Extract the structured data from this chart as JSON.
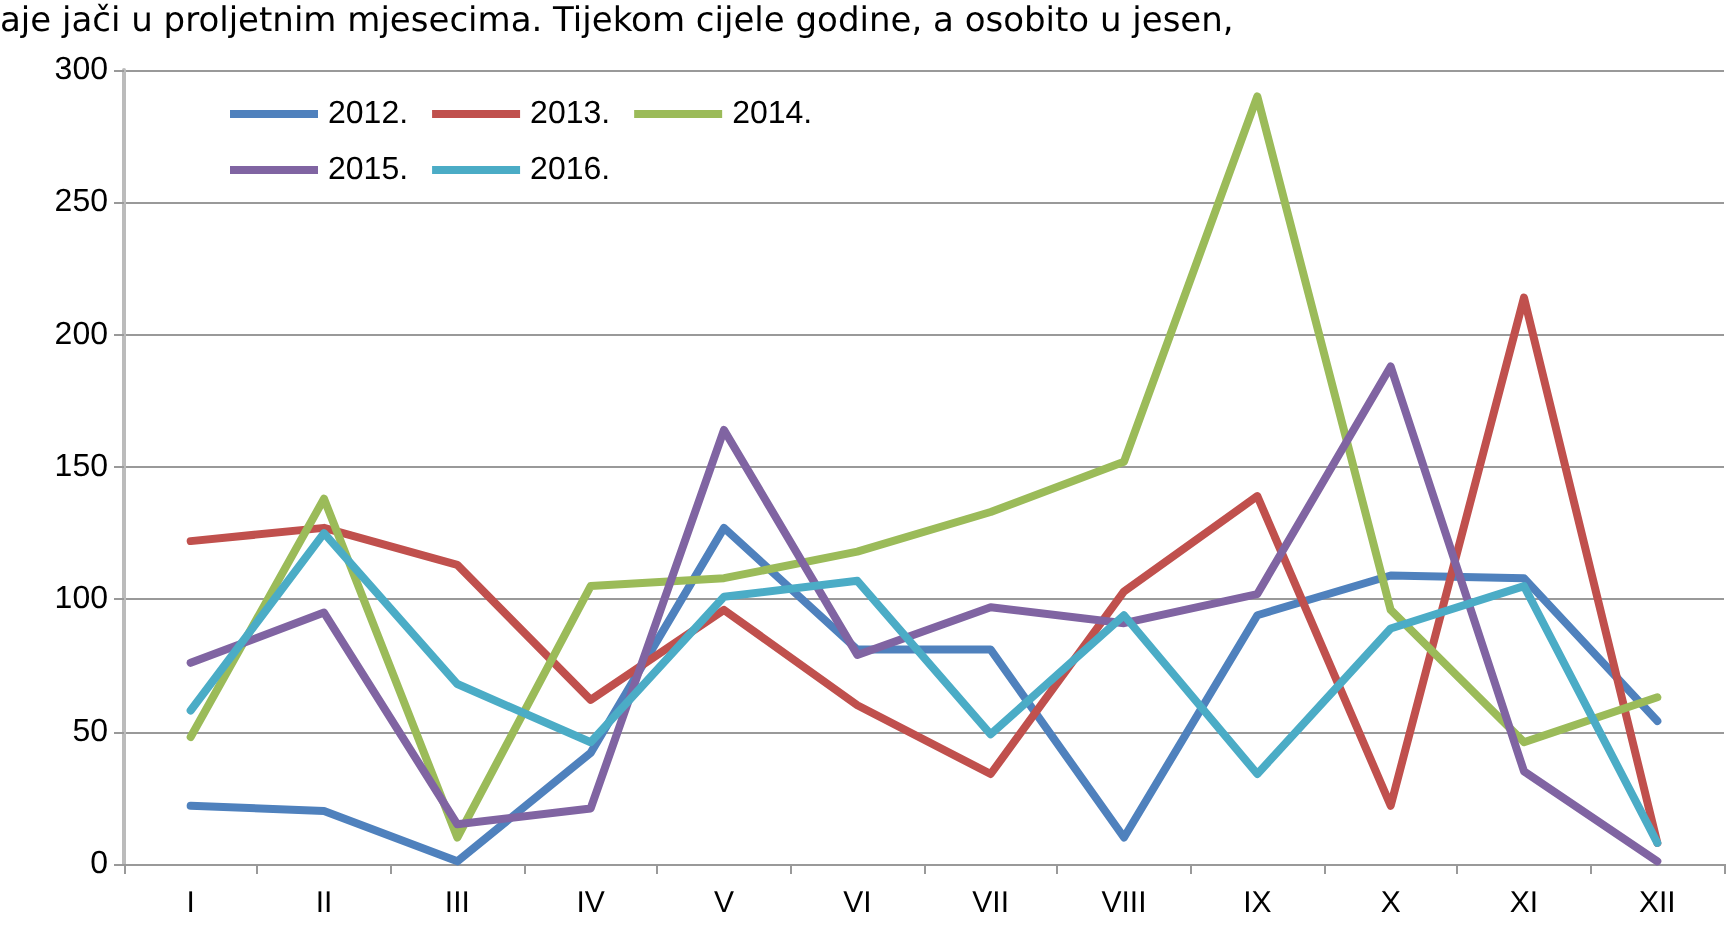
{
  "chart_data": {
    "type": "line",
    "annotations": [
      "aje jači u proljetnim mjesecima. Tijekom cijele godine, a osobito u jesen,"
    ],
    "categories": [
      "I",
      "II",
      "III",
      "IV",
      "V",
      "VI",
      "VII",
      "VIII",
      "IX",
      "X",
      "XI",
      "XII"
    ],
    "series": [
      {
        "name": "2012.",
        "color": "#4f81bd",
        "values": [
          22,
          20,
          1,
          42,
          127,
          81,
          81,
          10,
          94,
          109,
          108,
          54
        ]
      },
      {
        "name": "2013.",
        "color": "#c0504d",
        "values": [
          122,
          127,
          113,
          62,
          96,
          60,
          34,
          103,
          139,
          22,
          214,
          8
        ]
      },
      {
        "name": "2014.",
        "color": "#9bbb59",
        "values": [
          48,
          138,
          10,
          105,
          108,
          118,
          133,
          152,
          290,
          96,
          46,
          63
        ]
      },
      {
        "name": "2015.",
        "color": "#8064a2",
        "values": [
          76,
          95,
          15,
          21,
          164,
          79,
          97,
          91,
          102,
          188,
          35,
          1
        ]
      },
      {
        "name": "2016.",
        "color": "#4bacc6",
        "values": [
          58,
          125,
          68,
          46,
          101,
          107,
          49,
          94,
          34,
          89,
          105,
          8
        ]
      }
    ],
    "ylim": [
      0,
      300
    ],
    "yticks": [
      0,
      50,
      100,
      150,
      200,
      250,
      300
    ],
    "grid": "y",
    "legend": "top left",
    "marker": "none",
    "line_style": "solid"
  }
}
